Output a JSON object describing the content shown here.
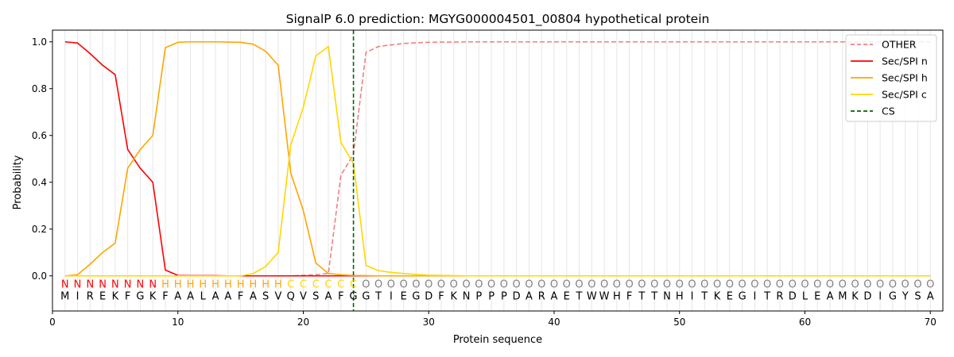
{
  "chart_data": {
    "type": "line",
    "title": "SignalP 6.0 prediction: MGYG000004501_00804 hypothetical protein",
    "xlabel": "Protein sequence",
    "ylabel": "Probability",
    "xlim": [
      0,
      71
    ],
    "ylim": [
      -0.15,
      1.05
    ],
    "x_ticks": [
      0,
      10,
      20,
      30,
      40,
      50,
      60,
      70
    ],
    "y_ticks": [
      0.0,
      0.2,
      0.4,
      0.6,
      0.8,
      1.0
    ],
    "legend_position": "top-right",
    "sequence": "MIREKFGKFAALAAFASVQVSAFGGTIEGDFKNPPPDARAETWWHFTTNHITKEGITRDLEAMKDIGYSA",
    "region_labels": "NNNNNNNNHHHHHHHHHHCCCCCCOOOOOOOOOOOOOOOOOOOOOOOOOOOOOOOOOOOOOOOOOOOOOO",
    "region_colors": {
      "N": "#ff0000",
      "H": "#ffa500",
      "C": "#ffd700",
      "O": "#808080"
    },
    "cleavage_site": 24,
    "series": [
      {
        "name": "OTHER",
        "color": "#f08080",
        "dash": "dashed",
        "values": [
          0.0,
          0.0,
          0.0,
          0.0,
          0.0,
          0.0,
          0.0,
          0.0,
          0.0,
          0.0,
          0.0,
          0.0,
          0.0,
          0.0,
          0.0,
          0.0,
          0.0,
          0.0,
          0.0,
          0.003,
          0.005,
          0.01,
          0.43,
          0.52,
          0.955,
          0.98,
          0.987,
          0.993,
          0.996,
          0.998,
          0.999,
          0.999,
          1.0,
          1.0,
          1.0,
          1.0,
          1.0,
          1.0,
          1.0,
          1.0,
          1.0,
          1.0,
          1.0,
          1.0,
          1.0,
          1.0,
          1.0,
          1.0,
          1.0,
          1.0,
          1.0,
          1.0,
          1.0,
          1.0,
          1.0,
          1.0,
          1.0,
          1.0,
          1.0,
          1.0,
          1.0,
          1.0,
          1.0,
          1.0,
          1.0,
          1.0,
          1.0,
          1.0,
          1.0,
          1.0
        ]
      },
      {
        "name": "Sec/SPI n",
        "color": "#ff0000",
        "dash": "solid",
        "values": [
          1.0,
          0.995,
          0.95,
          0.9,
          0.86,
          0.54,
          0.46,
          0.4,
          0.025,
          0.002,
          0.001,
          0.001,
          0.001,
          0.0,
          0.0,
          0.0,
          0.0,
          0.0,
          0.0,
          0.0,
          0.0,
          0.0,
          0.0,
          0.0,
          0.0,
          0.0,
          0.0,
          0.0,
          0.0,
          0.0,
          0.0,
          0.0,
          0.0,
          0.0,
          0.0,
          0.0,
          0.0,
          0.0,
          0.0,
          0.0,
          0.0,
          0.0,
          0.0,
          0.0,
          0.0,
          0.0,
          0.0,
          0.0,
          0.0,
          0.0,
          0.0,
          0.0,
          0.0,
          0.0,
          0.0,
          0.0,
          0.0,
          0.0,
          0.0,
          0.0,
          0.0,
          0.0,
          0.0,
          0.0,
          0.0,
          0.0,
          0.0,
          0.0,
          0.0,
          0.0
        ]
      },
      {
        "name": "Sec/SPI h",
        "color": "#ffa500",
        "dash": "solid",
        "values": [
          0.0,
          0.005,
          0.05,
          0.1,
          0.14,
          0.46,
          0.54,
          0.6,
          0.975,
          0.998,
          1.0,
          1.0,
          1.0,
          0.999,
          0.998,
          0.99,
          0.96,
          0.9,
          0.44,
          0.28,
          0.055,
          0.01,
          0.005,
          0.002,
          0.001,
          0.0,
          0.0,
          0.0,
          0.0,
          0.0,
          0.0,
          0.0,
          0.0,
          0.0,
          0.0,
          0.0,
          0.0,
          0.0,
          0.0,
          0.0,
          0.0,
          0.0,
          0.0,
          0.0,
          0.0,
          0.0,
          0.0,
          0.0,
          0.0,
          0.0,
          0.0,
          0.0,
          0.0,
          0.0,
          0.0,
          0.0,
          0.0,
          0.0,
          0.0,
          0.0,
          0.0,
          0.0,
          0.0,
          0.0,
          0.0,
          0.0,
          0.0,
          0.0,
          0.0,
          0.0
        ]
      },
      {
        "name": "Sec/SPI c",
        "color": "#ffd700",
        "dash": "solid",
        "values": [
          0.0,
          0.0,
          0.0,
          0.0,
          0.0,
          0.0,
          0.0,
          0.0,
          0.0,
          0.0,
          0.0,
          0.0,
          0.0,
          0.0,
          0.0,
          0.01,
          0.04,
          0.1,
          0.56,
          0.72,
          0.94,
          0.98,
          0.57,
          0.48,
          0.045,
          0.022,
          0.015,
          0.01,
          0.006,
          0.003,
          0.002,
          0.001,
          0.0,
          0.0,
          0.0,
          0.0,
          0.0,
          0.0,
          0.0,
          0.0,
          0.0,
          0.0,
          0.0,
          0.0,
          0.0,
          0.0,
          0.0,
          0.0,
          0.0,
          0.0,
          0.0,
          0.0,
          0.0,
          0.0,
          0.0,
          0.0,
          0.0,
          0.0,
          0.0,
          0.0,
          0.0,
          0.0,
          0.0,
          0.0,
          0.0,
          0.0,
          0.0,
          0.0,
          0.0,
          0.0
        ]
      }
    ],
    "cs_legend": {
      "name": "CS",
      "color": "#006400"
    }
  }
}
